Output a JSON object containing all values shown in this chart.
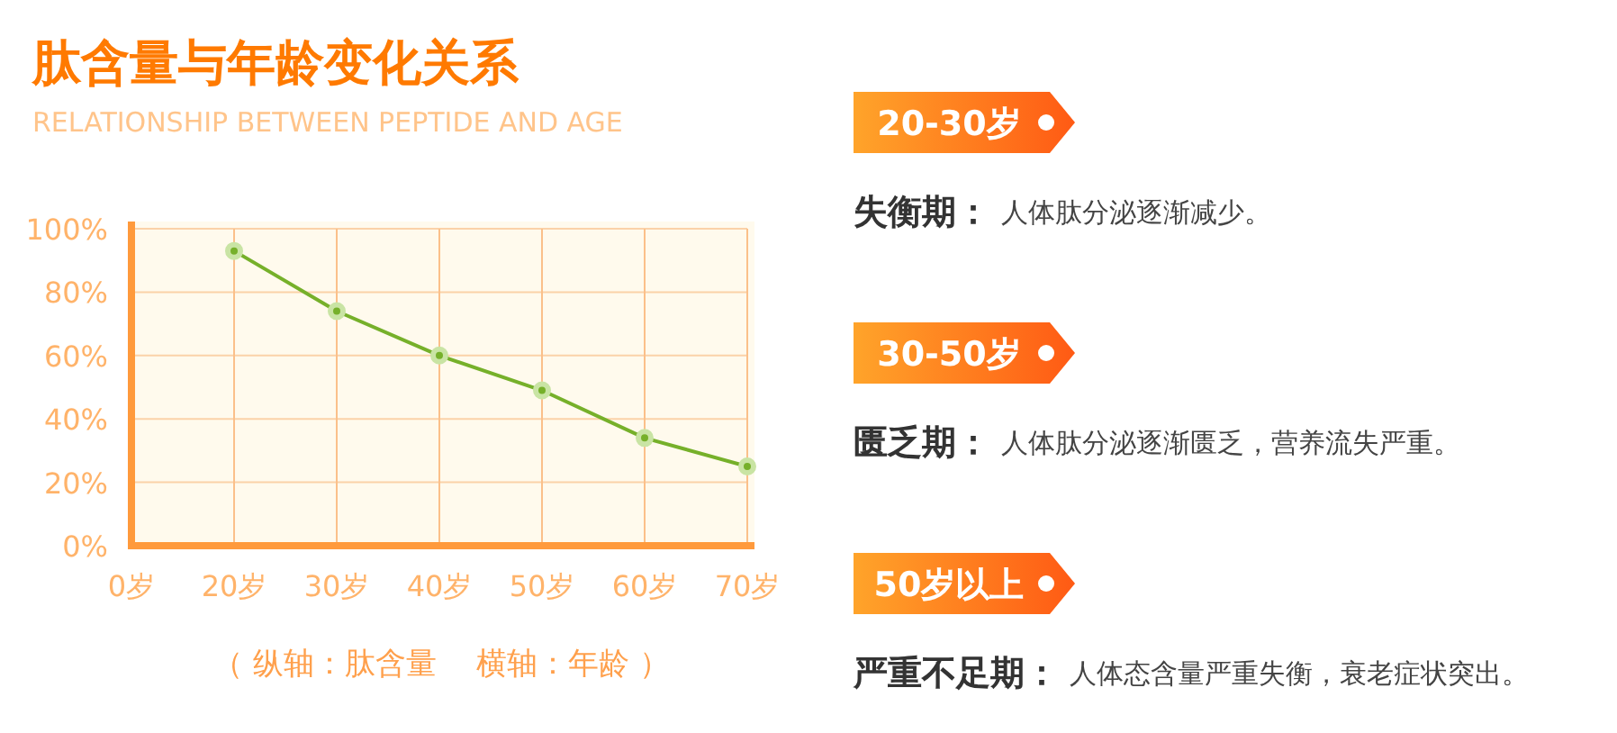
{
  "chart_data": {
    "type": "line",
    "title": "肽含量与年龄变化关系",
    "subtitle": "RELATIONSHIP BETWEEN PEPTIDE AND AGE",
    "categories": [
      "0岁",
      "20岁",
      "30岁",
      "40岁",
      "50岁",
      "60岁",
      "70岁"
    ],
    "values": [
      null,
      93,
      74,
      60,
      49,
      34,
      25
    ],
    "color": "#76b02a",
    "marker": "circle",
    "grid": true,
    "ylim": [
      0,
      100
    ],
    "yticks": [
      {
        "value": 0,
        "label": "0%"
      },
      {
        "value": 20,
        "label": "20%"
      },
      {
        "value": 40,
        "label": "40%"
      },
      {
        "value": 60,
        "label": "60%"
      },
      {
        "value": 80,
        "label": "80%"
      },
      {
        "value": 100,
        "label": "100%"
      }
    ],
    "annotations": [
      "（ 纵轴：肽含量　  横轴：年龄 ）",
      "20-30岁",
      "失衡期：",
      "人体肽分泌逐渐减少。",
      "30-50岁",
      "匮乏期：",
      "人体肽分泌逐渐匮乏，营养流失严重。",
      "50岁以上",
      "严重不足期：",
      "人体态含量严重失衡，衰老症状突出。"
    ]
  }
}
